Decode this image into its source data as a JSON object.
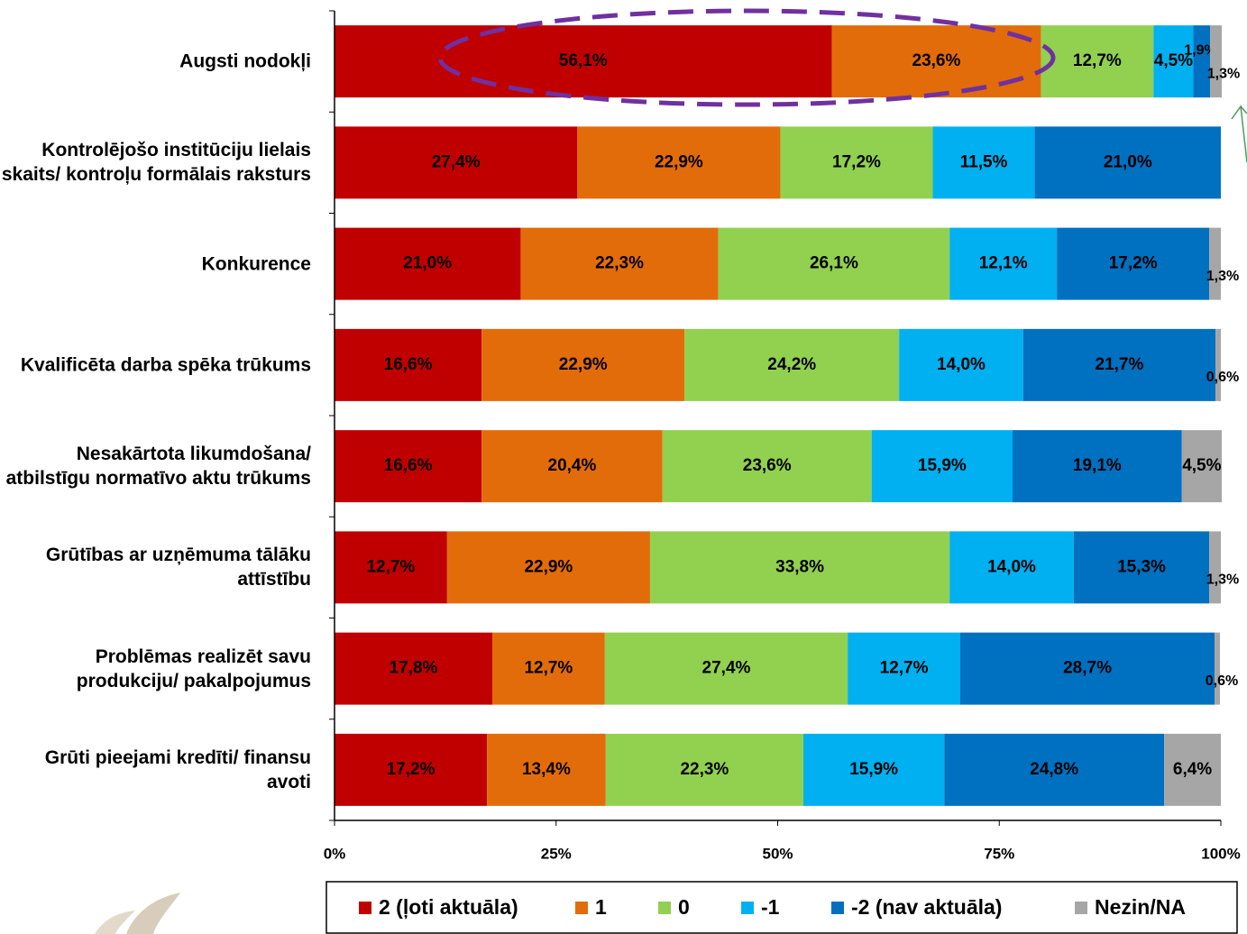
{
  "chart_data": {
    "type": "stacked-bar-horizontal",
    "categories": [
      "Augsti nodokļi",
      "Kontrolējošo institūciju lielais skaits/ kontroļu formālais raksturs",
      "Konkurence",
      "Kvalificēta darba spēka trūkums",
      "Nesakārtota likumdošana/ atbilstīgu normatīvo aktu trūkums",
      "Grūtības ar uzņēmuma tālāku attīstību",
      "Problēmas realizēt savu produkciju/ pakalpojumus",
      "Grūti pieejami kredīti/ finansu avoti"
    ],
    "series": [
      {
        "name": "2 (ļoti aktuāla)",
        "color": "#c00000",
        "values": [
          56.1,
          27.4,
          21.0,
          16.6,
          16.6,
          12.7,
          17.8,
          17.2
        ],
        "value_labels": [
          "56,1%",
          "27,4%",
          "21,0%",
          "16,6%",
          "16,6%",
          "12,7%",
          "17,8%",
          "17,2%"
        ]
      },
      {
        "name": "1",
        "color": "#e36c0a",
        "values": [
          23.6,
          22.9,
          22.3,
          22.9,
          20.4,
          22.9,
          12.7,
          13.4
        ],
        "value_labels": [
          "23,6%",
          "22,9%",
          "22,3%",
          "22,9%",
          "20,4%",
          "22,9%",
          "12,7%",
          "13,4%"
        ]
      },
      {
        "name": "0",
        "color": "#92d050",
        "values": [
          12.7,
          17.2,
          26.1,
          24.2,
          23.6,
          33.8,
          27.4,
          22.3
        ],
        "value_labels": [
          "12,7%",
          "17,2%",
          "26,1%",
          "24,2%",
          "23,6%",
          "33,8%",
          "27,4%",
          "22,3%"
        ]
      },
      {
        "name": "-1",
        "color": "#00b0f0",
        "values": [
          4.5,
          11.5,
          12.1,
          14.0,
          15.9,
          14.0,
          12.7,
          15.9
        ],
        "value_labels": [
          "4,5%",
          "11,5%",
          "12,1%",
          "14,0%",
          "15,9%",
          "14,0%",
          "12,7%",
          "15,9%"
        ]
      },
      {
        "name": "-2 (nav aktuāla)",
        "color": "#0070c0",
        "values": [
          1.9,
          21.0,
          17.2,
          21.7,
          19.1,
          15.3,
          28.7,
          24.8
        ],
        "value_labels": [
          "1,9%",
          "21,0%",
          "17,2%",
          "21,7%",
          "19,1%",
          "15,3%",
          "28,7%",
          "24,8%"
        ]
      },
      {
        "name": "Nezin/NA",
        "color": "#a6a6a6",
        "values": [
          1.3,
          null,
          1.3,
          0.6,
          4.5,
          1.3,
          0.6,
          6.4
        ],
        "value_labels": [
          "1,3%",
          null,
          "1,3%",
          "0,6%",
          "4,5%",
          "1,3%",
          "0,6%",
          "6,4%"
        ]
      }
    ],
    "xlim": [
      0,
      100
    ],
    "xticks": [
      {
        "value": 0,
        "label": "0%"
      },
      {
        "value": 25,
        "label": "25%"
      },
      {
        "value": 50,
        "label": "50%"
      },
      {
        "value": 75,
        "label": "75%"
      },
      {
        "value": 100,
        "label": "100%"
      }
    ],
    "legend": "bottom"
  }
}
